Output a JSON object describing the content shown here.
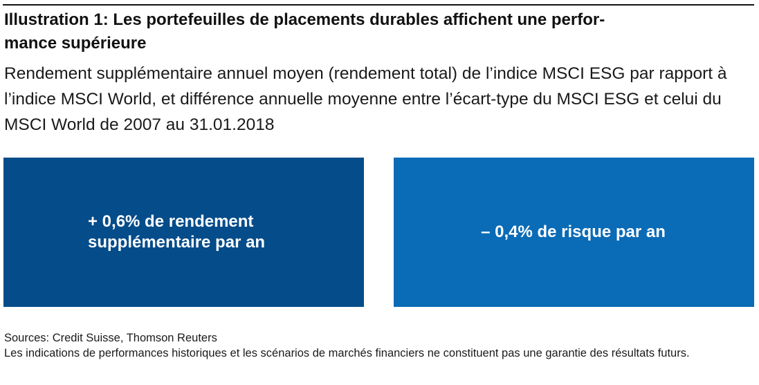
{
  "title": "Illustration 1: Les portefeuilles de placements durables affichent une performance supérieure",
  "title_line1": "Illustration 1: Les portefeuilles de placements durables affichent une perfor-",
  "title_line2": "mance supérieure",
  "subtitle": "Rendement supplémentaire annuel moyen (rendement total) de l’indice MSCI ESG par rapport à l’indice MSCI World, et différence annuelle moyenne entre l’écart-type du MSCI ESG et celui du MSCI World de 2007 au 31.01.2018",
  "boxes": [
    {
      "line1": "+ 0,6% de rendement",
      "line2": "supplémentaire par an",
      "color": "#044c8a"
    },
    {
      "line1": "– 0,4% de risque par an",
      "color": "#0a6bb6"
    }
  ],
  "footer": {
    "sources": "Sources: Credit Suisse, Thomson Reuters",
    "disclaimer": "Les indications de performances historiques et les scénarios de marchés financiers ne constituent pas une garantie des résultats futurs."
  }
}
